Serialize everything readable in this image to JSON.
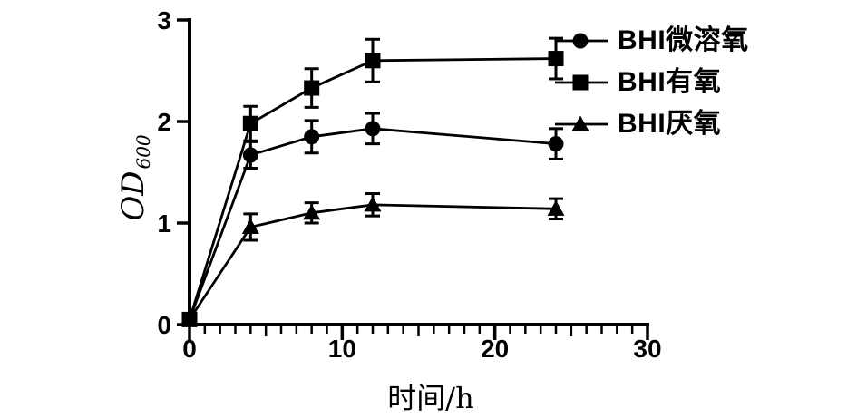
{
  "figure": {
    "background": "#ffffff",
    "ink": "#000000"
  },
  "chart_data": {
    "type": "line",
    "title": "",
    "xlabel": "时间/h",
    "ylabel": "OD600",
    "ylabel_main": "OD",
    "ylabel_sub": "600",
    "x": [
      0,
      4,
      8,
      12,
      24
    ],
    "series": [
      {
        "name": "BHI微溶氧",
        "marker": "circle",
        "values": [
          0.05,
          1.67,
          1.85,
          1.93,
          1.78
        ],
        "errors": [
          0,
          0.13,
          0.16,
          0.15,
          0.15
        ]
      },
      {
        "name": "BHI有氧",
        "marker": "square",
        "values": [
          0.05,
          1.98,
          2.33,
          2.6,
          2.62
        ],
        "errors": [
          0,
          0.17,
          0.19,
          0.21,
          0.2
        ]
      },
      {
        "name": "BHI厌氧",
        "marker": "triangle",
        "values": [
          0.05,
          0.96,
          1.1,
          1.18,
          1.14
        ],
        "errors": [
          0,
          0.13,
          0.1,
          0.11,
          0.1
        ]
      }
    ],
    "xlim": [
      0,
      30
    ],
    "ylim": [
      0,
      3
    ],
    "x_major_ticks": [
      0,
      10,
      20,
      30
    ],
    "x_minor_step": 1,
    "x_medium_step": 5,
    "y_ticks": [
      0,
      1,
      2,
      3
    ],
    "error_bars": true,
    "grid": false,
    "legend_position": "top-right",
    "line_color": "#000000"
  }
}
